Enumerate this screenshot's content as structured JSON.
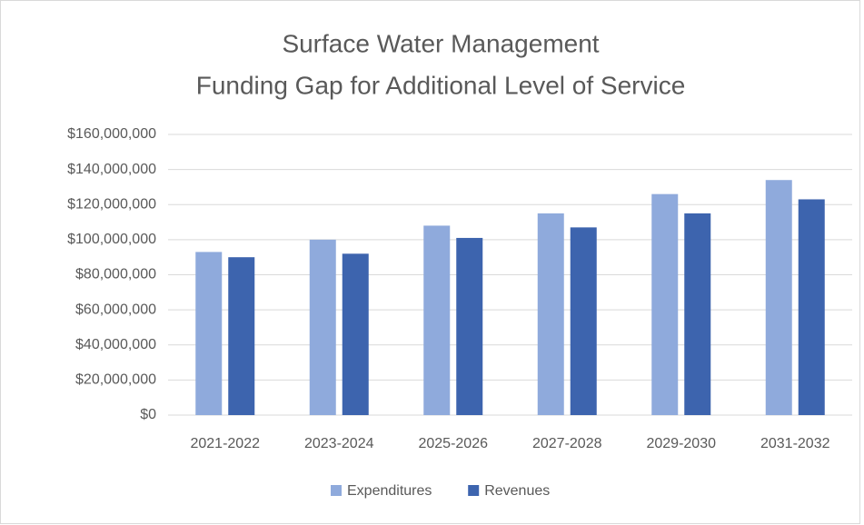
{
  "chart_data": {
    "type": "bar",
    "title": [
      "Surface Water Management",
      "Funding Gap for Additional Level of Service"
    ],
    "categories": [
      "2021-2022",
      "2023-2024",
      "2025-2026",
      "2027-2028",
      "2029-2030",
      "2031-2032"
    ],
    "series": [
      {
        "name": "Expenditures",
        "color": "#8faadc",
        "values": [
          93000000,
          100000000,
          108000000,
          115000000,
          126000000,
          134000000
        ]
      },
      {
        "name": "Revenues",
        "color": "#3d64ae",
        "values": [
          90000000,
          92000000,
          101000000,
          107000000,
          115000000,
          123000000
        ]
      }
    ],
    "ylim": [
      0,
      160000000
    ],
    "yticks": [
      {
        "value": 0,
        "label": "$0"
      },
      {
        "value": 20000000,
        "label": "$20,000,000"
      },
      {
        "value": 40000000,
        "label": "$40,000,000"
      },
      {
        "value": 60000000,
        "label": "$60,000,000"
      },
      {
        "value": 80000000,
        "label": "$80,000,000"
      },
      {
        "value": 100000000,
        "label": "$100,000,000"
      },
      {
        "value": 120000000,
        "label": "$120,000,000"
      },
      {
        "value": 140000000,
        "label": "$140,000,000"
      },
      {
        "value": 160000000,
        "label": "$160,000,000"
      }
    ],
    "grid": true,
    "legend": "bottom"
  }
}
